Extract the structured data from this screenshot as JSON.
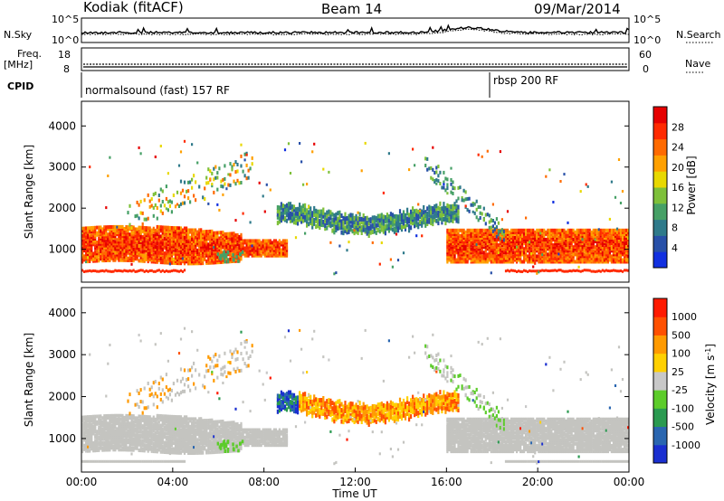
{
  "header": {
    "radar": "Kodiak (fitACF)",
    "beam": "Beam 14",
    "date": "09/Mar/2014"
  },
  "status": {
    "nsky_label": "N.Sky",
    "nsky_ticks": [
      "10^5",
      "10^0"
    ],
    "nsearch_label": "N.Search",
    "nsearch_ticks": [
      "10^5",
      "10^0"
    ],
    "freq_label": "Freq.",
    "freq_unit": "[MHz]",
    "freq_ticks": [
      "18",
      "8"
    ],
    "nave_label": "Nave",
    "nave_ticks": [
      "60",
      "0"
    ],
    "cpid_label": "CPID",
    "cpid_segments": [
      {
        "label": "normalsound (fast) 157 RF",
        "start_hour": 0
      },
      {
        "label": "rbsp 200 RF",
        "start_hour": 18
      }
    ]
  },
  "chart_data": [
    {
      "type": "heatmap",
      "ylabel": "Slant Range [km]",
      "xlabel": "",
      "yticks": [
        "1000",
        "2000",
        "3000",
        "4000"
      ],
      "ylim": [
        200,
        4600
      ],
      "xlim": [
        0,
        24
      ],
      "colorbar": {
        "label": "Power [dB]",
        "ticks": [
          "4",
          "8",
          "12",
          "16",
          "20",
          "24",
          "28"
        ],
        "colors": [
          "#1230e0",
          "#2850a8",
          "#2f7a8a",
          "#46a066",
          "#7ec03a",
          "#e8d800",
          "#ffa000",
          "#ff6a00",
          "#ff2a00",
          "#e60000"
        ]
      }
    },
    {
      "type": "heatmap",
      "ylabel": "Slant Range [km]",
      "xlabel": "Time UT",
      "xticks": [
        "00:00",
        "04:00",
        "08:00",
        "12:00",
        "16:00",
        "20:00",
        "00:00"
      ],
      "yticks": [
        "1000",
        "2000",
        "3000",
        "4000"
      ],
      "ylim": [
        200,
        4600
      ],
      "xlim": [
        0,
        24
      ],
      "colorbar": {
        "label": "Velocity [m s",
        "label_sup": "-1",
        "ticks": [
          "1000",
          "500",
          "100",
          "25",
          "-25",
          "-100",
          "-500",
          "-1000"
        ],
        "colors": [
          "#1a2fd0",
          "#2a66b0",
          "#2a9a50",
          "#5ccc2a",
          "#c8c8c8",
          "#ffd000",
          "#ff9a00",
          "#ff5000",
          "#ff1a00"
        ]
      }
    }
  ],
  "colors": {
    "ground_scatter": "#c4c4c0"
  }
}
